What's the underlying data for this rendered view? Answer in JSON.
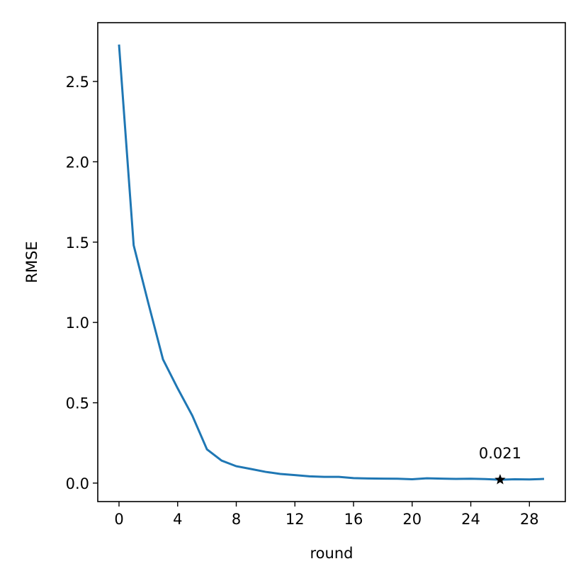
{
  "chart_data": {
    "type": "line",
    "x_label": "round",
    "y_label": "RMSE",
    "x": [
      0,
      1,
      2,
      3,
      4,
      5,
      6,
      7,
      8,
      9,
      10,
      11,
      12,
      13,
      14,
      15,
      16,
      17,
      18,
      19,
      20,
      21,
      22,
      23,
      24,
      25,
      26,
      27,
      28,
      29
    ],
    "series": [
      {
        "color": "#1f77b4",
        "values": [
          2.73,
          1.48,
          1.12,
          0.77,
          0.59,
          0.42,
          0.21,
          0.14,
          0.105,
          0.088,
          0.07,
          0.057,
          0.05,
          0.042,
          0.039,
          0.039,
          0.031,
          0.029,
          0.028,
          0.027,
          0.024,
          0.03,
          0.028,
          0.026,
          0.027,
          0.025,
          0.021,
          0.024,
          0.023,
          0.026
        ]
      }
    ],
    "marker": {
      "x": 26,
      "y": 0.021,
      "color": "#000000",
      "symbol": "star"
    },
    "xlim": [
      -1.45,
      30.45
    ],
    "ylim": [
      -0.115,
      2.866
    ],
    "xticks": [
      0,
      4,
      8,
      12,
      16,
      20,
      24,
      28
    ],
    "yticks": [
      {
        "value": 0,
        "label": "0.0"
      },
      0.5,
      {
        "value": 1,
        "label": "1.0"
      },
      1.5,
      {
        "value": 2,
        "label": "2.0"
      },
      2.5
    ]
  }
}
